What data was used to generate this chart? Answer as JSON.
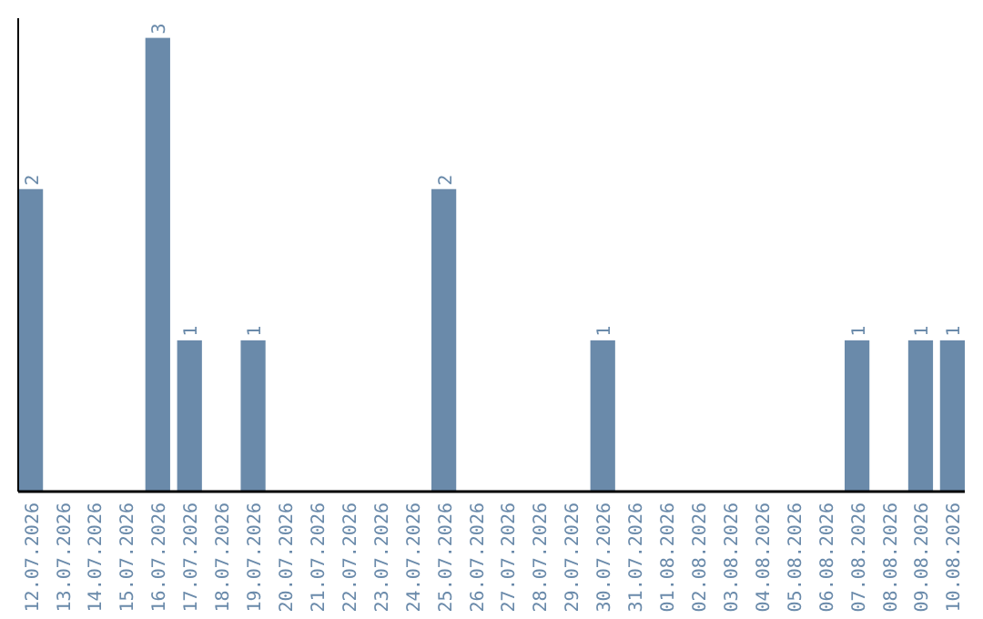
{
  "chart_data": {
    "type": "bar",
    "categories": [
      "12.07.2026",
      "13.07.2026",
      "14.07.2026",
      "15.07.2026",
      "16.07.2026",
      "17.07.2026",
      "18.07.2026",
      "19.07.2026",
      "20.07.2026",
      "21.07.2026",
      "22.07.2026",
      "23.07.2026",
      "24.07.2026",
      "25.07.2026",
      "26.07.2026",
      "27.07.2026",
      "28.07.2026",
      "29.07.2026",
      "30.07.2026",
      "31.07.2026",
      "01.08.2026",
      "02.08.2026",
      "03.08.2026",
      "04.08.2026",
      "05.08.2026",
      "06.08.2026",
      "07.08.2026",
      "08.08.2026",
      "09.08.2026",
      "10.08.2026"
    ],
    "values": [
      2,
      0,
      0,
      0,
      3,
      1,
      0,
      1,
      0,
      0,
      0,
      0,
      0,
      2,
      0,
      0,
      0,
      0,
      1,
      0,
      0,
      0,
      0,
      0,
      0,
      0,
      1,
      0,
      1,
      1
    ],
    "value_labels": [
      "2",
      null,
      null,
      null,
      "3",
      "1",
      null,
      "1",
      null,
      null,
      null,
      null,
      null,
      "2",
      null,
      null,
      null,
      null,
      "1",
      null,
      null,
      null,
      null,
      null,
      null,
      null,
      "1",
      null,
      "1",
      "1"
    ],
    "color": "#6a8aaa",
    "ylim": [
      0,
      3.13
    ],
    "tick_labels": "x"
  }
}
